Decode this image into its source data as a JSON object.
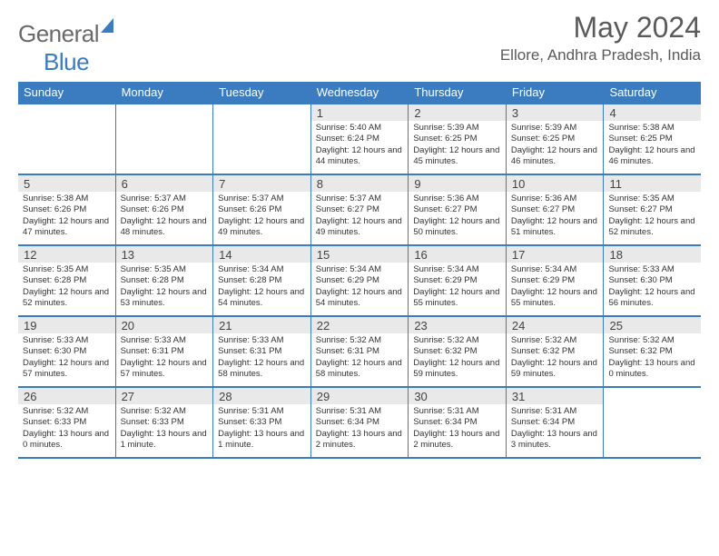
{
  "logo": {
    "word1": "General",
    "word2": "Blue"
  },
  "title": "May 2024",
  "location": "Ellore, Andhra Pradesh, India",
  "colors": {
    "accent": "#3b7bbf",
    "daynum_bg": "#e9e9e9",
    "text": "#333333",
    "header_text": "#5a5a5a",
    "background": "#ffffff"
  },
  "typography": {
    "month_fontsize": 32,
    "location_fontsize": 17,
    "dayhead_fontsize": 13,
    "body_fontsize": 9.5
  },
  "dayNames": [
    "Sunday",
    "Monday",
    "Tuesday",
    "Wednesday",
    "Thursday",
    "Friday",
    "Saturday"
  ],
  "weeks": [
    [
      {
        "day": "",
        "sunrise": "",
        "sunset": "",
        "daylight": ""
      },
      {
        "day": "",
        "sunrise": "",
        "sunset": "",
        "daylight": ""
      },
      {
        "day": "",
        "sunrise": "",
        "sunset": "",
        "daylight": ""
      },
      {
        "day": "1",
        "sunrise": "5:40 AM",
        "sunset": "6:24 PM",
        "daylight": "12 hours and 44 minutes."
      },
      {
        "day": "2",
        "sunrise": "5:39 AM",
        "sunset": "6:25 PM",
        "daylight": "12 hours and 45 minutes."
      },
      {
        "day": "3",
        "sunrise": "5:39 AM",
        "sunset": "6:25 PM",
        "daylight": "12 hours and 46 minutes."
      },
      {
        "day": "4",
        "sunrise": "5:38 AM",
        "sunset": "6:25 PM",
        "daylight": "12 hours and 46 minutes."
      }
    ],
    [
      {
        "day": "5",
        "sunrise": "5:38 AM",
        "sunset": "6:26 PM",
        "daylight": "12 hours and 47 minutes."
      },
      {
        "day": "6",
        "sunrise": "5:37 AM",
        "sunset": "6:26 PM",
        "daylight": "12 hours and 48 minutes."
      },
      {
        "day": "7",
        "sunrise": "5:37 AM",
        "sunset": "6:26 PM",
        "daylight": "12 hours and 49 minutes."
      },
      {
        "day": "8",
        "sunrise": "5:37 AM",
        "sunset": "6:27 PM",
        "daylight": "12 hours and 49 minutes."
      },
      {
        "day": "9",
        "sunrise": "5:36 AM",
        "sunset": "6:27 PM",
        "daylight": "12 hours and 50 minutes."
      },
      {
        "day": "10",
        "sunrise": "5:36 AM",
        "sunset": "6:27 PM",
        "daylight": "12 hours and 51 minutes."
      },
      {
        "day": "11",
        "sunrise": "5:35 AM",
        "sunset": "6:27 PM",
        "daylight": "12 hours and 52 minutes."
      }
    ],
    [
      {
        "day": "12",
        "sunrise": "5:35 AM",
        "sunset": "6:28 PM",
        "daylight": "12 hours and 52 minutes."
      },
      {
        "day": "13",
        "sunrise": "5:35 AM",
        "sunset": "6:28 PM",
        "daylight": "12 hours and 53 minutes."
      },
      {
        "day": "14",
        "sunrise": "5:34 AM",
        "sunset": "6:28 PM",
        "daylight": "12 hours and 54 minutes."
      },
      {
        "day": "15",
        "sunrise": "5:34 AM",
        "sunset": "6:29 PM",
        "daylight": "12 hours and 54 minutes."
      },
      {
        "day": "16",
        "sunrise": "5:34 AM",
        "sunset": "6:29 PM",
        "daylight": "12 hours and 55 minutes."
      },
      {
        "day": "17",
        "sunrise": "5:34 AM",
        "sunset": "6:29 PM",
        "daylight": "12 hours and 55 minutes."
      },
      {
        "day": "18",
        "sunrise": "5:33 AM",
        "sunset": "6:30 PM",
        "daylight": "12 hours and 56 minutes."
      }
    ],
    [
      {
        "day": "19",
        "sunrise": "5:33 AM",
        "sunset": "6:30 PM",
        "daylight": "12 hours and 57 minutes."
      },
      {
        "day": "20",
        "sunrise": "5:33 AM",
        "sunset": "6:31 PM",
        "daylight": "12 hours and 57 minutes."
      },
      {
        "day": "21",
        "sunrise": "5:33 AM",
        "sunset": "6:31 PM",
        "daylight": "12 hours and 58 minutes."
      },
      {
        "day": "22",
        "sunrise": "5:32 AM",
        "sunset": "6:31 PM",
        "daylight": "12 hours and 58 minutes."
      },
      {
        "day": "23",
        "sunrise": "5:32 AM",
        "sunset": "6:32 PM",
        "daylight": "12 hours and 59 minutes."
      },
      {
        "day": "24",
        "sunrise": "5:32 AM",
        "sunset": "6:32 PM",
        "daylight": "12 hours and 59 minutes."
      },
      {
        "day": "25",
        "sunrise": "5:32 AM",
        "sunset": "6:32 PM",
        "daylight": "13 hours and 0 minutes."
      }
    ],
    [
      {
        "day": "26",
        "sunrise": "5:32 AM",
        "sunset": "6:33 PM",
        "daylight": "13 hours and 0 minutes."
      },
      {
        "day": "27",
        "sunrise": "5:32 AM",
        "sunset": "6:33 PM",
        "daylight": "13 hours and 1 minute."
      },
      {
        "day": "28",
        "sunrise": "5:31 AM",
        "sunset": "6:33 PM",
        "daylight": "13 hours and 1 minute."
      },
      {
        "day": "29",
        "sunrise": "5:31 AM",
        "sunset": "6:34 PM",
        "daylight": "13 hours and 2 minutes."
      },
      {
        "day": "30",
        "sunrise": "5:31 AM",
        "sunset": "6:34 PM",
        "daylight": "13 hours and 2 minutes."
      },
      {
        "day": "31",
        "sunrise": "5:31 AM",
        "sunset": "6:34 PM",
        "daylight": "13 hours and 3 minutes."
      },
      {
        "day": "",
        "sunrise": "",
        "sunset": "",
        "daylight": ""
      }
    ]
  ],
  "labels": {
    "sunrise": "Sunrise:",
    "sunset": "Sunset:",
    "daylight": "Daylight:"
  }
}
